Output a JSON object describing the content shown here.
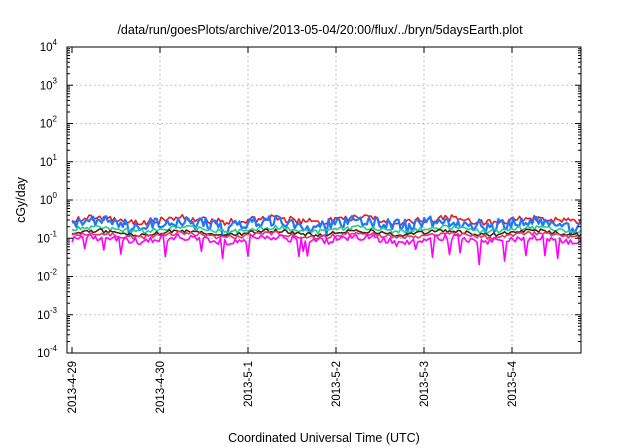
{
  "chart_data": {
    "type": "line",
    "title": "/data/run/goesPlots/archive/2013-05-04/20:00/flux/../bryn/5daysEarth.plot",
    "xlabel": "Coordinated Universal Time (UTC)",
    "ylabel": "cGy/day",
    "yscale": "log",
    "ylim": [
      0.0001,
      10000
    ],
    "xlim": [
      "2013-04-29 00:00",
      "2013-05-04 20:00"
    ],
    "grid": true,
    "legend": "none",
    "y_ticks": [
      {
        "base": "10",
        "exp": "-4",
        "value": 0.0001
      },
      {
        "base": "10",
        "exp": "-3",
        "value": 0.001
      },
      {
        "base": "10",
        "exp": "-2",
        "value": 0.01
      },
      {
        "base": "10",
        "exp": "-1",
        "value": 0.1
      },
      {
        "base": "10",
        "exp": "0",
        "value": 1
      },
      {
        "base": "10",
        "exp": "1",
        "value": 10
      },
      {
        "base": "10",
        "exp": "2",
        "value": 100
      },
      {
        "base": "10",
        "exp": "3",
        "value": 1000
      },
      {
        "base": "10",
        "exp": "4",
        "value": 10000
      }
    ],
    "x_ticks": [
      "2013-4-29",
      "2013-4-30",
      "2013-5-1",
      "2013-5-2",
      "2013-5-3",
      "2013-5-4"
    ],
    "series": [
      {
        "color": "#e41a1c",
        "level": 0.3,
        "spread": 0.18,
        "dips": 0.0
      },
      {
        "color": "#1f77ff",
        "level": 0.25,
        "spread": 0.3,
        "dips": 0.15
      },
      {
        "color": "#22cc88",
        "level": 0.17,
        "spread": 0.12,
        "dips": 0.0
      },
      {
        "color": "#3a2a10",
        "level": 0.14,
        "spread": 0.1,
        "dips": 0.0
      },
      {
        "color": "#e8336a",
        "level": 0.12,
        "spread": 0.1,
        "dips": 0.0
      },
      {
        "color": "#ff00ff",
        "level": 0.095,
        "spread": 0.18,
        "dips": 0.35
      }
    ]
  }
}
